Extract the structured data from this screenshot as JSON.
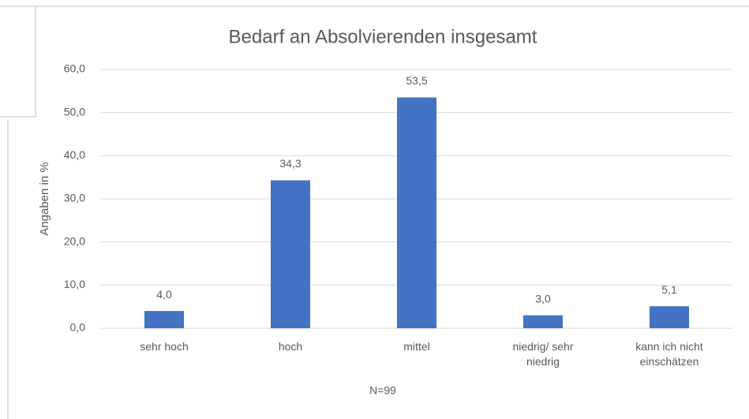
{
  "chart_data": {
    "type": "bar",
    "title": "Bedarf an Absolvierenden insgesamt",
    "y_label": "Angaben in %",
    "note": "N=99",
    "categories": [
      "sehr hoch",
      "hoch",
      "mittel",
      "niedrig/ sehr niedrig",
      "kann ich nicht einschätzen"
    ],
    "values": [
      4.0,
      34.3,
      53.5,
      3.0,
      5.1
    ],
    "value_labels": [
      "4,0",
      "34,3",
      "53,5",
      "3,0",
      "5,1"
    ],
    "color": "#4472c4",
    "ylim": [
      0,
      60
    ],
    "yticks": [
      {
        "value": 0,
        "label": "0,0"
      },
      {
        "value": 10,
        "label": "10,0"
      },
      {
        "value": 20,
        "label": "20,0"
      },
      {
        "value": 30,
        "label": "30,0"
      },
      {
        "value": 40,
        "label": "40,0"
      },
      {
        "value": 50,
        "label": "50,0"
      },
      {
        "value": 60,
        "label": "60,0"
      }
    ],
    "grid": true
  }
}
